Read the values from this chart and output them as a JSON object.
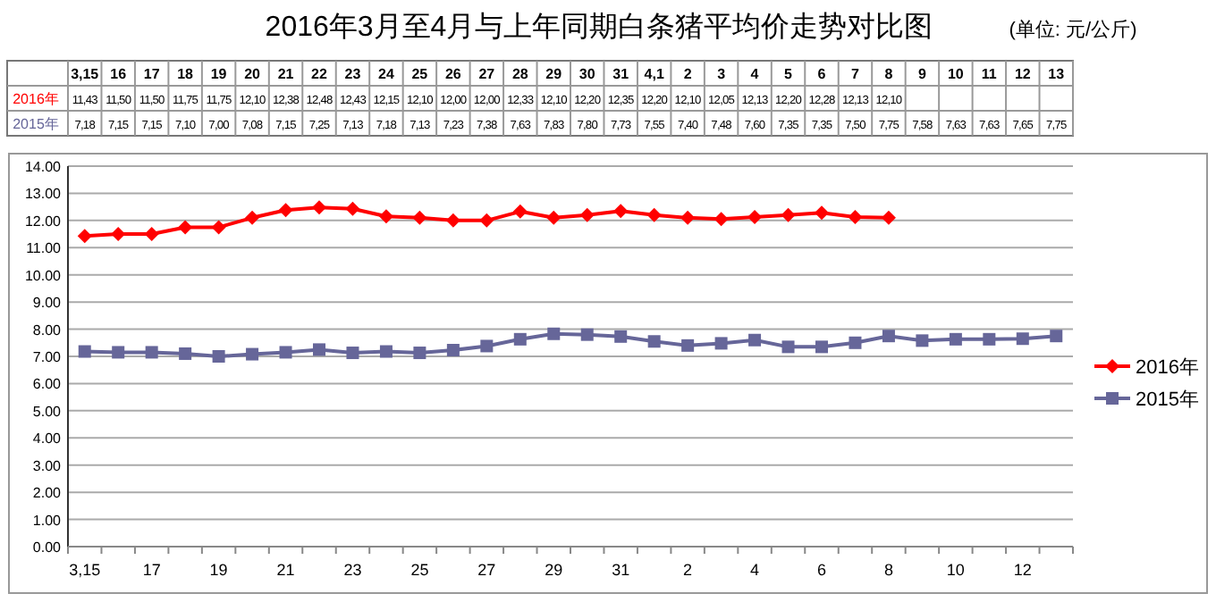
{
  "chart_data": {
    "type": "line",
    "title": "2016年3月至4月与上年同期白条猪平均价走势对比图",
    "subtitle": "(单位: 元/公斤)",
    "categories": [
      "3,15",
      "16",
      "17",
      "18",
      "19",
      "20",
      "21",
      "22",
      "23",
      "24",
      "25",
      "26",
      "27",
      "28",
      "29",
      "30",
      "31",
      "4,1",
      "2",
      "3",
      "4",
      "5",
      "6",
      "7",
      "8",
      "9",
      "10",
      "11",
      "12",
      "13"
    ],
    "series": [
      {
        "name": "2016年",
        "color": "#ff0000",
        "marker": "diamond",
        "values": [
          11.43,
          11.5,
          11.5,
          11.75,
          11.75,
          12.1,
          12.38,
          12.48,
          12.43,
          12.15,
          12.1,
          12.0,
          12.0,
          12.33,
          12.1,
          12.2,
          12.35,
          12.2,
          12.1,
          12.05,
          12.13,
          12.2,
          12.28,
          12.13,
          12.1,
          null,
          null,
          null,
          null,
          null
        ],
        "value_labels": [
          "11,43",
          "11,50",
          "11,50",
          "11,75",
          "11,75",
          "12,10",
          "12,38",
          "12,48",
          "12,43",
          "12,15",
          "12,10",
          "12,00",
          "12,00",
          "12,33",
          "12,10",
          "12,20",
          "12,35",
          "12,20",
          "12,10",
          "12,05",
          "12,13",
          "12,20",
          "12,28",
          "12,13",
          "12,10",
          null,
          null,
          null,
          null,
          null
        ]
      },
      {
        "name": "2015年",
        "color": "#666699",
        "marker": "square",
        "values": [
          7.18,
          7.15,
          7.15,
          7.1,
          7.0,
          7.08,
          7.15,
          7.25,
          7.13,
          7.18,
          7.13,
          7.23,
          7.38,
          7.63,
          7.83,
          7.8,
          7.73,
          7.55,
          7.4,
          7.48,
          7.6,
          7.35,
          7.35,
          7.5,
          7.75,
          7.58,
          7.63,
          7.63,
          7.65,
          7.75
        ],
        "value_labels": [
          "7,18",
          "7,15",
          "7,15",
          "7,10",
          "7,00",
          "7,08",
          "7,15",
          "7,25",
          "7,13",
          "7,18",
          "7,13",
          "7,23",
          "7,38",
          "7,63",
          "7,83",
          "7,80",
          "7,73",
          "7,55",
          "7,40",
          "7,48",
          "7,60",
          "7,35",
          "7,35",
          "7,50",
          "7,75",
          "7,58",
          "7,63",
          "7,63",
          "7,65",
          "7,75"
        ]
      }
    ],
    "ylim": [
      0,
      14
    ],
    "yticks": [
      {
        "value": 0,
        "label": "0.00"
      },
      {
        "value": 1,
        "label": "1.00"
      },
      {
        "value": 2,
        "label": "2.00"
      },
      {
        "value": 3,
        "label": "3.00"
      },
      {
        "value": 4,
        "label": "4.00"
      },
      {
        "value": 5,
        "label": "5.00"
      },
      {
        "value": 6,
        "label": "6.00"
      },
      {
        "value": 7,
        "label": "7.00"
      },
      {
        "value": 8,
        "label": "8.00"
      },
      {
        "value": 9,
        "label": "9.00"
      },
      {
        "value": 10,
        "label": "10.00"
      },
      {
        "value": 11,
        "label": "11.00"
      },
      {
        "value": 12,
        "label": "12.00"
      },
      {
        "value": 13,
        "label": "13.00"
      },
      {
        "value": 14,
        "label": "14.00"
      }
    ],
    "grid": "y",
    "legend": "right",
    "line_style": "solid"
  }
}
